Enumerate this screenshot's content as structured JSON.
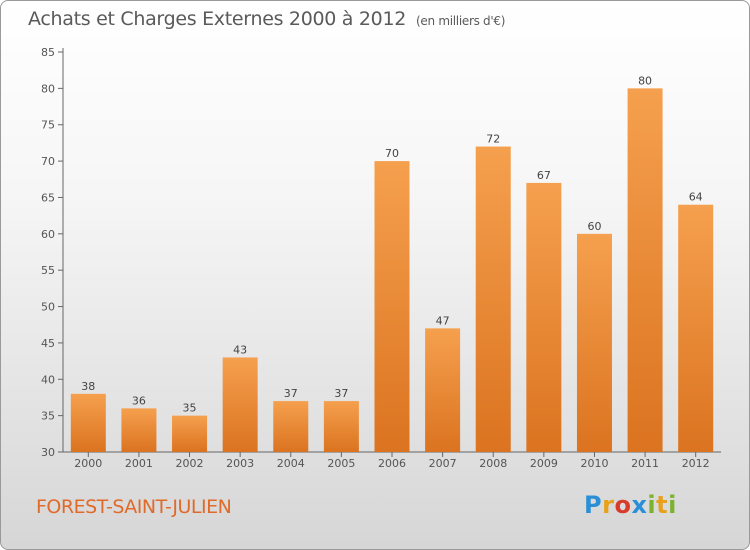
{
  "title": "Achats et Charges Externes 2000 à 2012",
  "unit_note": "(en milliers d'€)",
  "commune": "FOREST-SAINT-JULIEN",
  "logo": {
    "letters": [
      "P",
      "r",
      "o",
      "x",
      "i",
      "t",
      "i"
    ],
    "colors": [
      "#2a8fd6",
      "#e8a21a",
      "#d93b2b",
      "#2a8fd6",
      "#7bb32e",
      "#e8a21a",
      "#7bb32e"
    ]
  },
  "colors": {
    "bar_top": "#f5a04e",
    "bar_bottom": "#db7320",
    "commune": "#e06a2a"
  },
  "chart_data": {
    "type": "bar",
    "categories": [
      "2000",
      "2001",
      "2002",
      "2003",
      "2004",
      "2005",
      "2006",
      "2007",
      "2008",
      "2009",
      "2010",
      "2011",
      "2012"
    ],
    "values": [
      38,
      36,
      35,
      43,
      37,
      37,
      70,
      47,
      72,
      67,
      60,
      80,
      64
    ],
    "ylim": [
      30,
      85
    ],
    "yticks": [
      30,
      35,
      40,
      45,
      50,
      55,
      60,
      65,
      70,
      75,
      80,
      85
    ],
    "grid": false,
    "xlabel": "",
    "ylabel": ""
  }
}
